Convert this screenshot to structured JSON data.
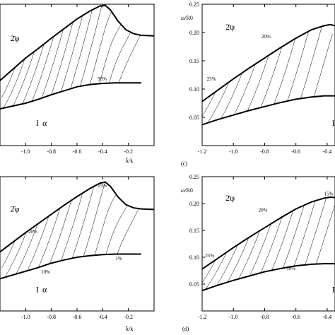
{
  "chart_data": [
    {
      "type": "line",
      "panel_label": "",
      "ylabel": "",
      "xlabel": "k̄/k",
      "xlim": [
        -1.2,
        0.0
      ],
      "ylim": [
        0.0,
        0.25
      ],
      "x_ticks": [
        "-1.0",
        "-0.8",
        "-0.6",
        "-0.4",
        "-0.2"
      ],
      "y_ticks": [],
      "region_labels": [
        {
          "text": "2̄φ",
          "x": -1.12,
          "y": 0.185
        },
        {
          "text": "I",
          "x": -0.92,
          "y": 0.035
        },
        {
          "text": "α",
          "x": -0.87,
          "y": 0.035
        }
      ],
      "annotations": [
        {
          "text": "95%",
          "x": -0.44,
          "y": 0.115
        }
      ],
      "series": [
        {
          "role": "upper",
          "points": [
            [
              -1.2,
              0.115
            ],
            [
              -1.1,
              0.135
            ],
            [
              -1.0,
              0.155
            ],
            [
              -0.9,
              0.172
            ],
            [
              -0.8,
              0.19
            ],
            [
              -0.7,
              0.207
            ],
            [
              -0.6,
              0.224
            ],
            [
              -0.5,
              0.238
            ],
            [
              -0.42,
              0.247
            ],
            [
              -0.38,
              0.248
            ],
            [
              -0.34,
              0.24
            ],
            [
              -0.28,
              0.22
            ],
            [
              -0.22,
              0.205
            ],
            [
              -0.16,
              0.198
            ],
            [
              -0.1,
              0.195
            ],
            [
              0.0,
              0.194
            ]
          ]
        },
        {
          "role": "lower",
          "points": [
            [
              -1.2,
              0.065
            ],
            [
              -1.1,
              0.07
            ],
            [
              -1.0,
              0.075
            ],
            [
              -0.9,
              0.082
            ],
            [
              -0.8,
              0.09
            ],
            [
              -0.7,
              0.097
            ],
            [
              -0.6,
              0.104
            ],
            [
              -0.5,
              0.108
            ],
            [
              -0.4,
              0.11
            ],
            [
              -0.3,
              0.111
            ],
            [
              -0.2,
              0.111
            ],
            [
              -0.1,
              0.111
            ]
          ]
        }
      ],
      "hatch_count": 14
    },
    {
      "type": "line",
      "panel_label": "(c)",
      "ylabel": "ω/R0",
      "xlabel": "",
      "xlim": [
        -1.2,
        -0.35
      ],
      "ylim": [
        0.0,
        0.25
      ],
      "x_ticks": [
        "-1.2",
        "-1.0",
        "-0.8",
        "-0.6",
        "-0.4"
      ],
      "y_ticks": [
        "0.05",
        "0.10",
        "0.15",
        "0.20",
        "0.25"
      ],
      "region_labels": [
        {
          "text": "2̄φ",
          "x": -1.05,
          "y": 0.205
        },
        {
          "text": "I",
          "x": -0.37,
          "y": 0.035
        }
      ],
      "annotations": [
        {
          "text": "25%",
          "x": -1.17,
          "y": 0.115
        },
        {
          "text": "20%",
          "x": -0.82,
          "y": 0.19
        }
      ],
      "series": [
        {
          "role": "upper",
          "points": [
            [
              -1.2,
              0.078
            ],
            [
              -1.1,
              0.098
            ],
            [
              -1.0,
              0.118
            ],
            [
              -0.9,
              0.137
            ],
            [
              -0.8,
              0.155
            ],
            [
              -0.7,
              0.173
            ],
            [
              -0.6,
              0.19
            ],
            [
              -0.5,
              0.205
            ],
            [
              -0.42,
              0.212
            ],
            [
              -0.38,
              0.214
            ],
            [
              -0.35,
              0.212
            ]
          ]
        },
        {
          "role": "lower",
          "points": [
            [
              -1.2,
              0.037
            ],
            [
              -1.1,
              0.046
            ],
            [
              -1.0,
              0.054
            ],
            [
              -0.9,
              0.062
            ],
            [
              -0.8,
              0.069
            ],
            [
              -0.7,
              0.076
            ],
            [
              -0.6,
              0.082
            ],
            [
              -0.5,
              0.086
            ],
            [
              -0.42,
              0.088
            ],
            [
              -0.35,
              0.088
            ]
          ]
        }
      ],
      "hatch_count": 10
    },
    {
      "type": "line",
      "panel_label": "",
      "ylabel": "",
      "xlabel": "k̄/k",
      "xlim": [
        -1.2,
        0.0
      ],
      "ylim": [
        0.0,
        0.25
      ],
      "x_ticks": [
        "-1.0",
        "-0.8",
        "-0.6",
        "-0.4",
        "-0.2"
      ],
      "y_ticks": [],
      "region_labels": [
        {
          "text": "2̄φ",
          "x": -1.12,
          "y": 0.185
        },
        {
          "text": "I",
          "x": -0.92,
          "y": 0.035
        },
        {
          "text": "α",
          "x": -0.87,
          "y": 0.035
        }
      ],
      "annotations": [
        {
          "text": "20%",
          "x": -0.98,
          "y": 0.145
        },
        {
          "text": "15%",
          "x": -0.44,
          "y": 0.23
        },
        {
          "text": "10%",
          "x": -0.88,
          "y": 0.07
        },
        {
          "text": "1%",
          "x": -0.3,
          "y": 0.095
        }
      ],
      "series": [
        {
          "role": "upper",
          "points": [
            [
              -1.2,
              0.11
            ],
            [
              -1.1,
              0.128
            ],
            [
              -1.0,
              0.146
            ],
            [
              -0.9,
              0.163
            ],
            [
              -0.8,
              0.18
            ],
            [
              -0.7,
              0.197
            ],
            [
              -0.6,
              0.213
            ],
            [
              -0.5,
              0.228
            ],
            [
              -0.42,
              0.238
            ],
            [
              -0.38,
              0.24
            ],
            [
              -0.34,
              0.232
            ],
            [
              -0.28,
              0.212
            ],
            [
              -0.22,
              0.198
            ],
            [
              -0.16,
              0.192
            ],
            [
              -0.1,
              0.19
            ],
            [
              0.0,
              0.189
            ]
          ]
        },
        {
          "role": "lower",
          "points": [
            [
              -1.2,
              0.06
            ],
            [
              -1.1,
              0.067
            ],
            [
              -1.0,
              0.074
            ],
            [
              -0.9,
              0.081
            ],
            [
              -0.8,
              0.089
            ],
            [
              -0.7,
              0.095
            ],
            [
              -0.6,
              0.1
            ],
            [
              -0.5,
              0.103
            ],
            [
              -0.4,
              0.105
            ],
            [
              -0.3,
              0.106
            ],
            [
              -0.2,
              0.106
            ],
            [
              -0.1,
              0.106
            ]
          ]
        }
      ],
      "hatch_count": 12
    },
    {
      "type": "line",
      "panel_label": "(d)",
      "ylabel": "ω/R0",
      "xlabel": "",
      "xlim": [
        -1.2,
        -0.35
      ],
      "ylim": [
        0.0,
        0.25
      ],
      "x_ticks": [
        "-1.2",
        "-1.0",
        "-0.8",
        "-0.6",
        "-0.4"
      ],
      "y_ticks": [
        "0.05",
        "0.10",
        "0.15",
        "0.20",
        "0.25"
      ],
      "region_labels": [
        {
          "text": "2̄φ",
          "x": -1.05,
          "y": 0.205
        },
        {
          "text": "I",
          "x": -0.37,
          "y": 0.035
        }
      ],
      "annotations": [
        {
          "text": "25%",
          "x": -1.18,
          "y": 0.1
        },
        {
          "text": "20%",
          "x": -0.84,
          "y": 0.185
        },
        {
          "text": "15%",
          "x": -0.42,
          "y": 0.215
        },
        {
          "text": "10%",
          "x": -0.66,
          "y": 0.076
        }
      ],
      "series": [
        {
          "role": "upper",
          "points": [
            [
              -1.2,
              0.078
            ],
            [
              -1.1,
              0.098
            ],
            [
              -1.0,
              0.118
            ],
            [
              -0.9,
              0.137
            ],
            [
              -0.8,
              0.155
            ],
            [
              -0.7,
              0.173
            ],
            [
              -0.6,
              0.19
            ],
            [
              -0.5,
              0.203
            ],
            [
              -0.42,
              0.21
            ],
            [
              -0.38,
              0.212
            ],
            [
              -0.35,
              0.211
            ]
          ]
        },
        {
          "role": "lower",
          "points": [
            [
              -1.2,
              0.038
            ],
            [
              -1.1,
              0.048
            ],
            [
              -1.0,
              0.057
            ],
            [
              -0.9,
              0.065
            ],
            [
              -0.8,
              0.073
            ],
            [
              -0.7,
              0.079
            ],
            [
              -0.6,
              0.084
            ],
            [
              -0.5,
              0.087
            ],
            [
              -0.42,
              0.088
            ],
            [
              -0.35,
              0.088
            ]
          ]
        }
      ],
      "hatch_count": 12
    }
  ]
}
